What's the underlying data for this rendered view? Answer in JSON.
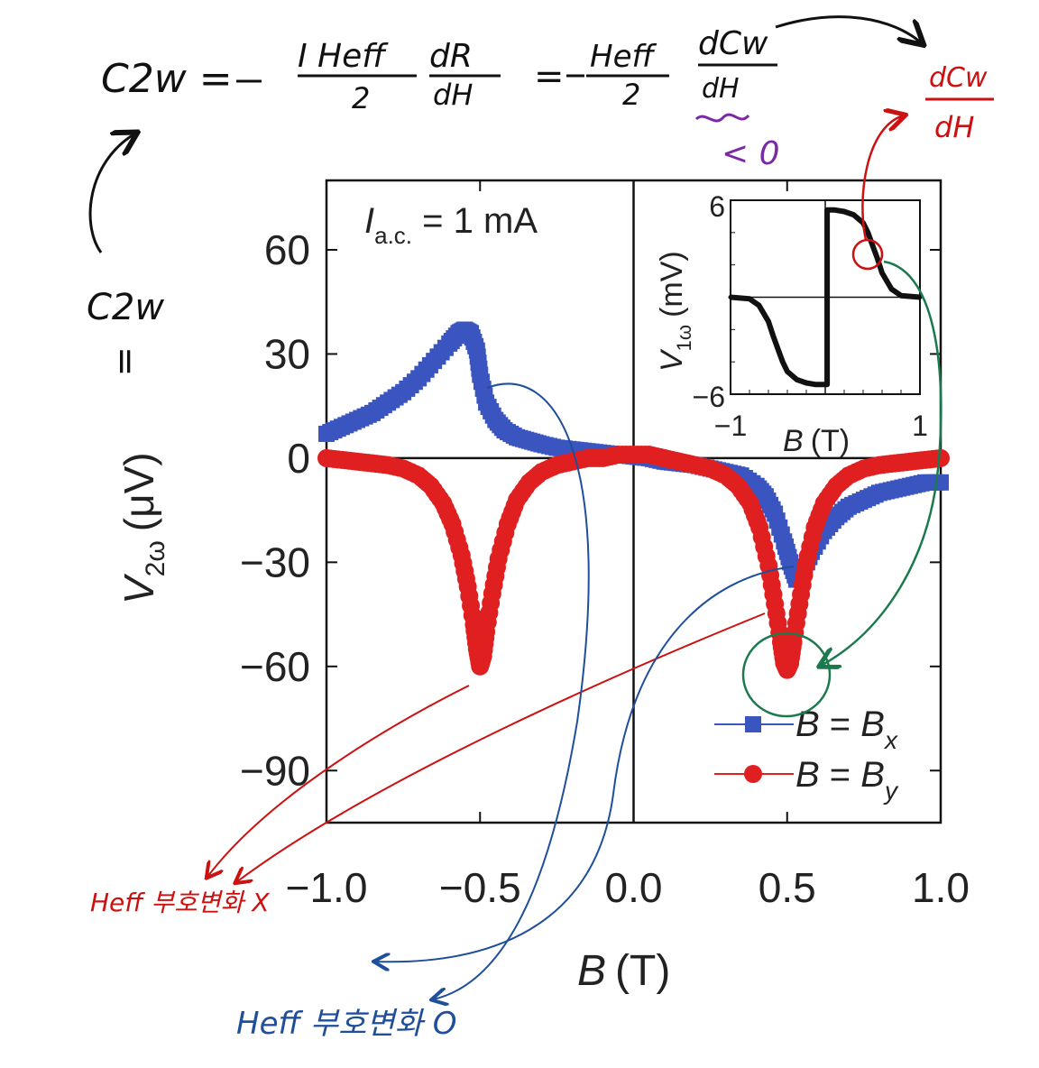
{
  "chart_data": {
    "type": "scatter",
    "xlabel_var": "B",
    "xlabel_unit": "(T)",
    "ylabel_var": "V",
    "ylabel_sub": "2ω",
    "ylabel_unit": "(μV)",
    "xlim": [
      -1.0,
      1.0
    ],
    "ylim": [
      -105,
      80
    ],
    "xticks": [
      -1.0,
      -0.5,
      0.0,
      0.5,
      1.0
    ],
    "xtick_labels": [
      "−1.0",
      "−0.5",
      "0.0",
      "0.5",
      "1.0"
    ],
    "yticks": [
      60,
      30,
      0,
      -30,
      -60,
      -90
    ],
    "ytick_labels": [
      "60",
      "30",
      "0",
      "−30",
      "−60",
      "−90"
    ],
    "annotation_var": "I",
    "annotation_sub": "a.c.",
    "annotation_rest": " = 1 mA",
    "series": [
      {
        "name": "B = Bx",
        "legend_lhs": "B",
        "legend_eq": " = ",
        "legend_rhs": "B",
        "legend_sub": "x",
        "color": "#3a55c0",
        "marker": "square",
        "x": [
          -1.0,
          -0.95,
          -0.9,
          -0.85,
          -0.8,
          -0.75,
          -0.7,
          -0.65,
          -0.6,
          -0.57,
          -0.55,
          -0.53,
          -0.51,
          -0.5,
          -0.48,
          -0.45,
          -0.42,
          -0.38,
          -0.34,
          -0.3,
          -0.25,
          -0.2,
          -0.15,
          -0.1,
          -0.05,
          0.0,
          0.05,
          0.1,
          0.15,
          0.2,
          0.25,
          0.3,
          0.35,
          0.4,
          0.43,
          0.46,
          0.49,
          0.51,
          0.53,
          0.55,
          0.58,
          0.62,
          0.66,
          0.7,
          0.75,
          0.8,
          0.85,
          0.9,
          0.95,
          1.0
        ],
        "y": [
          7,
          9,
          11,
          13,
          16,
          19,
          23,
          28,
          33,
          36,
          37,
          36,
          31,
          24,
          16,
          11,
          8,
          6,
          5,
          4,
          3,
          2.5,
          2,
          1.5,
          1,
          0.5,
          0,
          -1,
          -1.5,
          -2,
          -3,
          -4,
          -5,
          -8,
          -11,
          -16,
          -24,
          -30,
          -35,
          -33,
          -27,
          -21,
          -17,
          -14,
          -12,
          -10,
          -9,
          -8,
          -7,
          -7
        ]
      },
      {
        "name": "B = By",
        "legend_lhs": "B",
        "legend_eq": " = ",
        "legend_rhs": "B",
        "legend_sub": "y",
        "color": "#e02020",
        "marker": "circle",
        "x": [
          -1.0,
          -0.95,
          -0.9,
          -0.85,
          -0.8,
          -0.75,
          -0.7,
          -0.66,
          -0.62,
          -0.59,
          -0.56,
          -0.54,
          -0.52,
          -0.51,
          -0.5,
          -0.49,
          -0.48,
          -0.46,
          -0.44,
          -0.41,
          -0.38,
          -0.34,
          -0.3,
          -0.25,
          -0.2,
          -0.15,
          -0.1,
          -0.05,
          0.0,
          0.05,
          0.1,
          0.15,
          0.2,
          0.25,
          0.3,
          0.34,
          0.38,
          0.41,
          0.44,
          0.46,
          0.48,
          0.49,
          0.5,
          0.51,
          0.52,
          0.54,
          0.56,
          0.59,
          0.62,
          0.66,
          0.7,
          0.75,
          0.8,
          0.85,
          0.9,
          0.95,
          1.0
        ],
        "y": [
          0,
          -0.5,
          -1,
          -1.5,
          -2,
          -3,
          -5,
          -8,
          -13,
          -19,
          -28,
          -37,
          -48,
          -55,
          -60,
          -57,
          -50,
          -39,
          -29,
          -19,
          -12,
          -7,
          -4,
          -2,
          -1,
          0,
          0,
          1,
          1,
          1,
          0,
          -1,
          -2,
          -3,
          -5,
          -8,
          -13,
          -20,
          -31,
          -42,
          -53,
          -59,
          -61,
          -59,
          -53,
          -42,
          -31,
          -20,
          -13,
          -8,
          -5,
          -3,
          -2,
          -1.5,
          -1,
          -0.5,
          0
        ]
      }
    ],
    "inset": {
      "type": "line",
      "xlabel_var": "B",
      "xlabel_unit": "(T)",
      "ylabel_var": "V",
      "ylabel_sub": "1ω",
      "ylabel_unit": "(mV)",
      "xlim": [
        -1,
        1
      ],
      "ylim": [
        -6,
        6
      ],
      "xtick_labels": [
        "−1",
        "1"
      ],
      "ytick_labels": [
        "6",
        "−6"
      ],
      "color": "#111111",
      "x": [
        -1.0,
        -0.8,
        -0.7,
        -0.6,
        -0.55,
        -0.5,
        -0.45,
        -0.4,
        -0.3,
        -0.2,
        -0.1,
        0.0,
        0.02,
        0.02,
        0.1,
        0.2,
        0.3,
        0.4,
        0.45,
        0.5,
        0.55,
        0.6,
        0.7,
        0.8,
        1.0
      ],
      "y": [
        0,
        -0.1,
        -0.5,
        -1.5,
        -2.4,
        -3.2,
        -4,
        -4.6,
        -5.1,
        -5.3,
        -5.4,
        -5.4,
        -5.4,
        5.4,
        5.4,
        5.3,
        5.1,
        4.6,
        4,
        3.2,
        2.4,
        1.5,
        0.5,
        0.1,
        0
      ]
    }
  },
  "handwriting": {
    "eq_lhs": "C2w =",
    "eq_term1_num": "I Heff",
    "eq_term1_den": "2",
    "eq_dR_num": "dR",
    "eq_dR_den": "dH",
    "eq_mid_eq": "=",
    "eq_term2_num": "Heff",
    "eq_term2_den": "2",
    "eq_dCw_num": "dCw",
    "eq_dCw_den": "dH",
    "purple_note": "< 0",
    "red_deriv_num": "dCw",
    "red_deriv_den": "dH",
    "left_c2w": "C2w",
    "left_eq": "=",
    "red_label": "Heff 부호변화 X",
    "blue_label": "Heff 부호변화 O",
    "colors": {
      "red": "#cc1111",
      "blue": "#1f4f9a",
      "green": "#1b7a4d",
      "purple": "#7a2aa5",
      "ink": "#111111"
    }
  }
}
